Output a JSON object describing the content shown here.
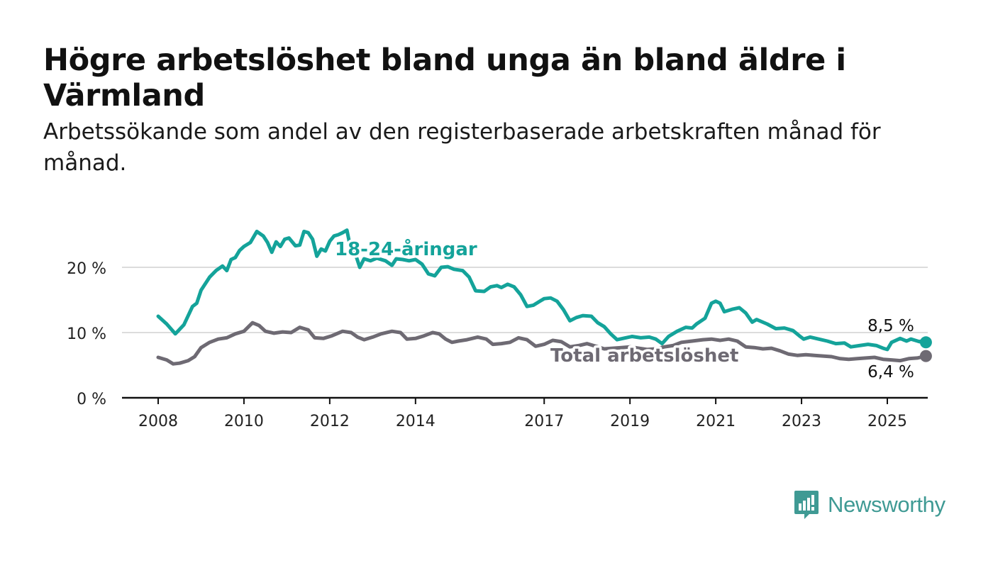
{
  "title": "Högre arbetslöshet bland unga än bland äldre i Värmland",
  "subtitle": "Arbetssökande som andel av den registerbaserade arbetskraften månad för månad.",
  "brand": {
    "name": "Newsworthy",
    "icon": "newsworthy-logo-icon",
    "color": "#3f9a94"
  },
  "chart_data": {
    "type": "line",
    "x_ticks": [
      "2008",
      "2010",
      "2012",
      "2014",
      "2017",
      "2019",
      "2021",
      "2023",
      "2025"
    ],
    "y_ticks": [
      {
        "value": 0,
        "label": "0 %"
      },
      {
        "value": 10,
        "label": "10 %"
      },
      {
        "value": 20,
        "label": "20 %"
      }
    ],
    "xlim": [
      2007.2,
      2026.0
    ],
    "ylim": [
      0,
      20
    ],
    "grid": true,
    "series": [
      {
        "name": "18-24-åringar",
        "color": "#14a39a",
        "end_label": "8,5 %",
        "points": [
          [
            2008.0,
            12.5
          ],
          [
            2008.2,
            11.3
          ],
          [
            2008.4,
            9.8
          ],
          [
            2008.6,
            11.2
          ],
          [
            2008.8,
            14.0
          ],
          [
            2008.9,
            14.5
          ],
          [
            2009.0,
            16.5
          ],
          [
            2009.2,
            18.5
          ],
          [
            2009.35,
            19.5
          ],
          [
            2009.5,
            20.2
          ],
          [
            2009.6,
            19.5
          ],
          [
            2009.7,
            21.2
          ],
          [
            2009.8,
            21.5
          ],
          [
            2009.9,
            22.6
          ],
          [
            2010.0,
            23.2
          ],
          [
            2010.15,
            23.8
          ],
          [
            2010.3,
            25.5
          ],
          [
            2010.45,
            24.8
          ],
          [
            2010.55,
            23.8
          ],
          [
            2010.65,
            22.3
          ],
          [
            2010.75,
            23.9
          ],
          [
            2010.85,
            23.2
          ],
          [
            2010.95,
            24.3
          ],
          [
            2011.05,
            24.5
          ],
          [
            2011.2,
            23.3
          ],
          [
            2011.3,
            23.4
          ],
          [
            2011.4,
            25.5
          ],
          [
            2011.5,
            25.3
          ],
          [
            2011.6,
            24.3
          ],
          [
            2011.7,
            21.7
          ],
          [
            2011.8,
            22.8
          ],
          [
            2011.9,
            22.5
          ],
          [
            2012.0,
            24.0
          ],
          [
            2012.1,
            24.8
          ],
          [
            2012.2,
            25.0
          ],
          [
            2012.3,
            25.3
          ],
          [
            2012.4,
            25.7
          ],
          [
            2012.5,
            22.5
          ],
          [
            2012.6,
            22.0
          ],
          [
            2012.7,
            20.0
          ],
          [
            2012.8,
            21.3
          ],
          [
            2012.95,
            21.0
          ],
          [
            2013.1,
            21.4
          ],
          [
            2013.3,
            21.0
          ],
          [
            2013.45,
            20.3
          ],
          [
            2013.55,
            21.3
          ],
          [
            2013.7,
            21.2
          ],
          [
            2013.85,
            21.0
          ],
          [
            2014.0,
            21.2
          ],
          [
            2014.15,
            20.5
          ],
          [
            2014.3,
            19.0
          ],
          [
            2014.45,
            18.7
          ],
          [
            2014.6,
            20.0
          ],
          [
            2014.75,
            20.1
          ],
          [
            2014.9,
            19.7
          ],
          [
            2015.1,
            19.5
          ],
          [
            2015.25,
            18.5
          ],
          [
            2015.4,
            16.4
          ],
          [
            2015.6,
            16.3
          ],
          [
            2015.75,
            17.0
          ],
          [
            2015.9,
            17.2
          ],
          [
            2016.0,
            16.9
          ],
          [
            2016.15,
            17.4
          ],
          [
            2016.3,
            17.0
          ],
          [
            2016.45,
            15.8
          ],
          [
            2016.6,
            14.0
          ],
          [
            2016.75,
            14.2
          ],
          [
            2016.9,
            14.8
          ],
          [
            2017.0,
            15.2
          ],
          [
            2017.15,
            15.3
          ],
          [
            2017.3,
            14.8
          ],
          [
            2017.45,
            13.5
          ],
          [
            2017.6,
            11.8
          ],
          [
            2017.75,
            12.3
          ],
          [
            2017.9,
            12.6
          ],
          [
            2018.1,
            12.5
          ],
          [
            2018.25,
            11.5
          ],
          [
            2018.4,
            10.9
          ],
          [
            2018.55,
            9.8
          ],
          [
            2018.7,
            8.9
          ],
          [
            2018.9,
            9.2
          ],
          [
            2019.05,
            9.4
          ],
          [
            2019.25,
            9.2
          ],
          [
            2019.45,
            9.3
          ],
          [
            2019.6,
            9.0
          ],
          [
            2019.75,
            8.3
          ],
          [
            2019.9,
            9.4
          ],
          [
            2020.1,
            10.2
          ],
          [
            2020.3,
            10.8
          ],
          [
            2020.45,
            10.7
          ],
          [
            2020.55,
            11.3
          ],
          [
            2020.75,
            12.2
          ],
          [
            2020.9,
            14.5
          ],
          [
            2021.0,
            14.8
          ],
          [
            2021.1,
            14.5
          ],
          [
            2021.2,
            13.2
          ],
          [
            2021.4,
            13.6
          ],
          [
            2021.55,
            13.8
          ],
          [
            2021.7,
            13.0
          ],
          [
            2021.85,
            11.6
          ],
          [
            2021.95,
            12.0
          ],
          [
            2022.2,
            11.3
          ],
          [
            2022.4,
            10.6
          ],
          [
            2022.6,
            10.7
          ],
          [
            2022.8,
            10.3
          ],
          [
            2022.95,
            9.5
          ],
          [
            2023.05,
            9.0
          ],
          [
            2023.2,
            9.3
          ],
          [
            2023.4,
            9.0
          ],
          [
            2023.6,
            8.7
          ],
          [
            2023.8,
            8.3
          ],
          [
            2024.0,
            8.4
          ],
          [
            2024.15,
            7.8
          ],
          [
            2024.35,
            8.0
          ],
          [
            2024.55,
            8.2
          ],
          [
            2024.75,
            8.0
          ],
          [
            2024.9,
            7.6
          ],
          [
            2025.0,
            7.4
          ],
          [
            2025.1,
            8.5
          ],
          [
            2025.3,
            9.1
          ],
          [
            2025.45,
            8.7
          ],
          [
            2025.55,
            9.0
          ],
          [
            2025.65,
            8.8
          ],
          [
            2025.75,
            8.6
          ],
          [
            2025.85,
            8.8
          ],
          [
            2025.9,
            8.5
          ]
        ]
      },
      {
        "name": "Total arbetslöshet",
        "color": "#6e6a73",
        "end_label": "6,4 %",
        "points": [
          [
            2008.0,
            6.2
          ],
          [
            2008.2,
            5.8
          ],
          [
            2008.35,
            5.2
          ],
          [
            2008.5,
            5.3
          ],
          [
            2008.7,
            5.7
          ],
          [
            2008.85,
            6.3
          ],
          [
            2009.0,
            7.7
          ],
          [
            2009.2,
            8.5
          ],
          [
            2009.4,
            9.0
          ],
          [
            2009.6,
            9.2
          ],
          [
            2009.8,
            9.8
          ],
          [
            2010.0,
            10.2
          ],
          [
            2010.2,
            11.5
          ],
          [
            2010.35,
            11.1
          ],
          [
            2010.5,
            10.2
          ],
          [
            2010.7,
            9.9
          ],
          [
            2010.9,
            10.1
          ],
          [
            2011.1,
            10.0
          ],
          [
            2011.3,
            10.8
          ],
          [
            2011.5,
            10.4
          ],
          [
            2011.65,
            9.2
          ],
          [
            2011.85,
            9.1
          ],
          [
            2012.05,
            9.5
          ],
          [
            2012.3,
            10.2
          ],
          [
            2012.5,
            10.0
          ],
          [
            2012.65,
            9.3
          ],
          [
            2012.8,
            8.9
          ],
          [
            2013.0,
            9.3
          ],
          [
            2013.2,
            9.8
          ],
          [
            2013.45,
            10.2
          ],
          [
            2013.65,
            10.0
          ],
          [
            2013.8,
            9.0
          ],
          [
            2014.0,
            9.1
          ],
          [
            2014.2,
            9.5
          ],
          [
            2014.4,
            10.0
          ],
          [
            2014.55,
            9.8
          ],
          [
            2014.7,
            9.0
          ],
          [
            2014.85,
            8.5
          ],
          [
            2015.0,
            8.7
          ],
          [
            2015.2,
            8.9
          ],
          [
            2015.45,
            9.3
          ],
          [
            2015.65,
            9.0
          ],
          [
            2015.8,
            8.2
          ],
          [
            2016.0,
            8.3
          ],
          [
            2016.2,
            8.5
          ],
          [
            2016.4,
            9.2
          ],
          [
            2016.6,
            8.9
          ],
          [
            2016.8,
            7.9
          ],
          [
            2017.0,
            8.2
          ],
          [
            2017.2,
            8.8
          ],
          [
            2017.4,
            8.6
          ],
          [
            2017.6,
            7.8
          ],
          [
            2017.8,
            8.0
          ],
          [
            2018.0,
            8.3
          ],
          [
            2018.2,
            7.9
          ],
          [
            2018.4,
            7.5
          ],
          [
            2018.6,
            7.6
          ],
          [
            2018.8,
            7.7
          ],
          [
            2019.0,
            7.8
          ],
          [
            2019.2,
            7.6
          ],
          [
            2019.4,
            7.4
          ],
          [
            2019.6,
            7.5
          ],
          [
            2019.8,
            7.8
          ],
          [
            2020.0,
            8.0
          ],
          [
            2020.2,
            8.5
          ],
          [
            2020.45,
            8.7
          ],
          [
            2020.7,
            8.9
          ],
          [
            2020.9,
            9.0
          ],
          [
            2021.1,
            8.8
          ],
          [
            2021.3,
            9.0
          ],
          [
            2021.5,
            8.7
          ],
          [
            2021.7,
            7.8
          ],
          [
            2021.9,
            7.7
          ],
          [
            2022.1,
            7.5
          ],
          [
            2022.3,
            7.6
          ],
          [
            2022.5,
            7.2
          ],
          [
            2022.7,
            6.7
          ],
          [
            2022.9,
            6.5
          ],
          [
            2023.1,
            6.6
          ],
          [
            2023.3,
            6.5
          ],
          [
            2023.5,
            6.4
          ],
          [
            2023.7,
            6.3
          ],
          [
            2023.9,
            6.0
          ],
          [
            2024.1,
            5.9
          ],
          [
            2024.3,
            6.0
          ],
          [
            2024.5,
            6.1
          ],
          [
            2024.7,
            6.2
          ],
          [
            2024.9,
            5.9
          ],
          [
            2025.1,
            5.8
          ],
          [
            2025.3,
            5.7
          ],
          [
            2025.5,
            6.0
          ],
          [
            2025.7,
            6.1
          ],
          [
            2025.9,
            6.4
          ]
        ]
      }
    ]
  }
}
